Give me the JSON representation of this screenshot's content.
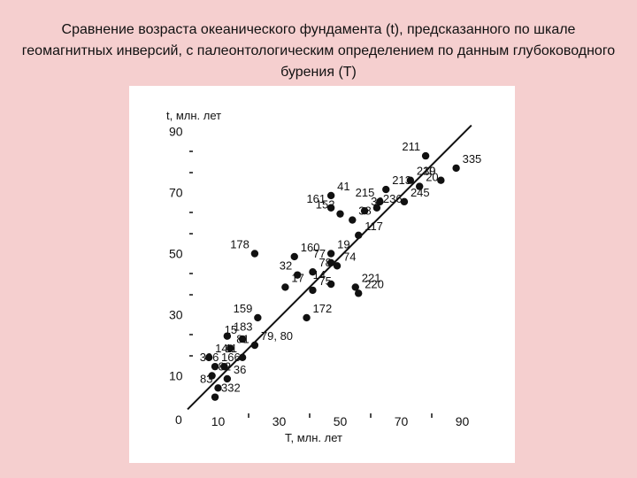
{
  "slide": {
    "title": "Сравнение возраста океанического фундамента (t), предсказанного по шкале геомагнитных инверсий, с палеонтологическим определением по данным глубоководного бурения (Т)"
  },
  "chart_data": {
    "type": "scatter",
    "title": "",
    "xlabel": "Т, млн. лет",
    "ylabel": "t, млн. лет",
    "xlim": [
      0,
      95
    ],
    "ylim": [
      0,
      95
    ],
    "x_ticks": [
      "10",
      "30",
      "50",
      "70",
      "90"
    ],
    "y_ticks": [
      "90",
      "70",
      "50",
      "30",
      "10"
    ],
    "origin_label": "0",
    "trend_line": {
      "from": [
        0,
        -1
      ],
      "to": [
        93,
        92
      ]
    },
    "points": [
      {
        "label": "211",
        "x": 78,
        "y": 82
      },
      {
        "label": "335",
        "x": 88,
        "y": 78
      },
      {
        "label": "239",
        "x": 73,
        "y": 74
      },
      {
        "label": "10",
        "x": 83,
        "y": 74
      },
      {
        "label": "20",
        "x": 76,
        "y": 72
      },
      {
        "label": "213",
        "x": 65,
        "y": 71
      },
      {
        "label": "215",
        "x": 63,
        "y": 67
      },
      {
        "label": "245",
        "x": 71,
        "y": 67
      },
      {
        "label": "41",
        "x": 47,
        "y": 69
      },
      {
        "label": "161",
        "x": 47,
        "y": 65
      },
      {
        "label": "39",
        "x": 58,
        "y": 64
      },
      {
        "label": "236",
        "x": 62,
        "y": 65
      },
      {
        "label": "152",
        "x": 50,
        "y": 63
      },
      {
        "label": "38",
        "x": 54,
        "y": 61
      },
      {
        "label": "117",
        "x": 56,
        "y": 56
      },
      {
        "label": "178",
        "x": 22,
        "y": 50
      },
      {
        "label": "160",
        "x": 35,
        "y": 49
      },
      {
        "label": "19",
        "x": 47,
        "y": 50
      },
      {
        "label": "77",
        "x": 47,
        "y": 47
      },
      {
        "label": "74",
        "x": 49,
        "y": 46
      },
      {
        "label": "78",
        "x": 41,
        "y": 44
      },
      {
        "label": "32",
        "x": 36,
        "y": 43
      },
      {
        "label": "17",
        "x": 32,
        "y": 39
      },
      {
        "label": "75",
        "x": 41,
        "y": 38
      },
      {
        "label": "14",
        "x": 47,
        "y": 40
      },
      {
        "label": "221",
        "x": 55,
        "y": 39
      },
      {
        "label": "220",
        "x": 56,
        "y": 37
      },
      {
        "label": "159",
        "x": 23,
        "y": 29
      },
      {
        "label": "172",
        "x": 39,
        "y": 29
      },
      {
        "label": "183",
        "x": 13,
        "y": 23
      },
      {
        "label": "15",
        "x": 18,
        "y": 22
      },
      {
        "label": "79, 80",
        "x": 22,
        "y": 20
      },
      {
        "label": "81",
        "x": 14,
        "y": 19
      },
      {
        "label": "11",
        "x": 18,
        "y": 16
      },
      {
        "label": "14",
        "x": 7,
        "y": 16
      },
      {
        "label": "166",
        "x": 9,
        "y": 13
      },
      {
        "label": "396",
        "x": 12,
        "y": 13
      },
      {
        "label": "36",
        "x": 13,
        "y": 9
      },
      {
        "label": "82",
        "x": 8,
        "y": 10
      },
      {
        "label": "83",
        "x": 10,
        "y": 6
      },
      {
        "label": "332",
        "x": 9,
        "y": 3
      }
    ]
  }
}
